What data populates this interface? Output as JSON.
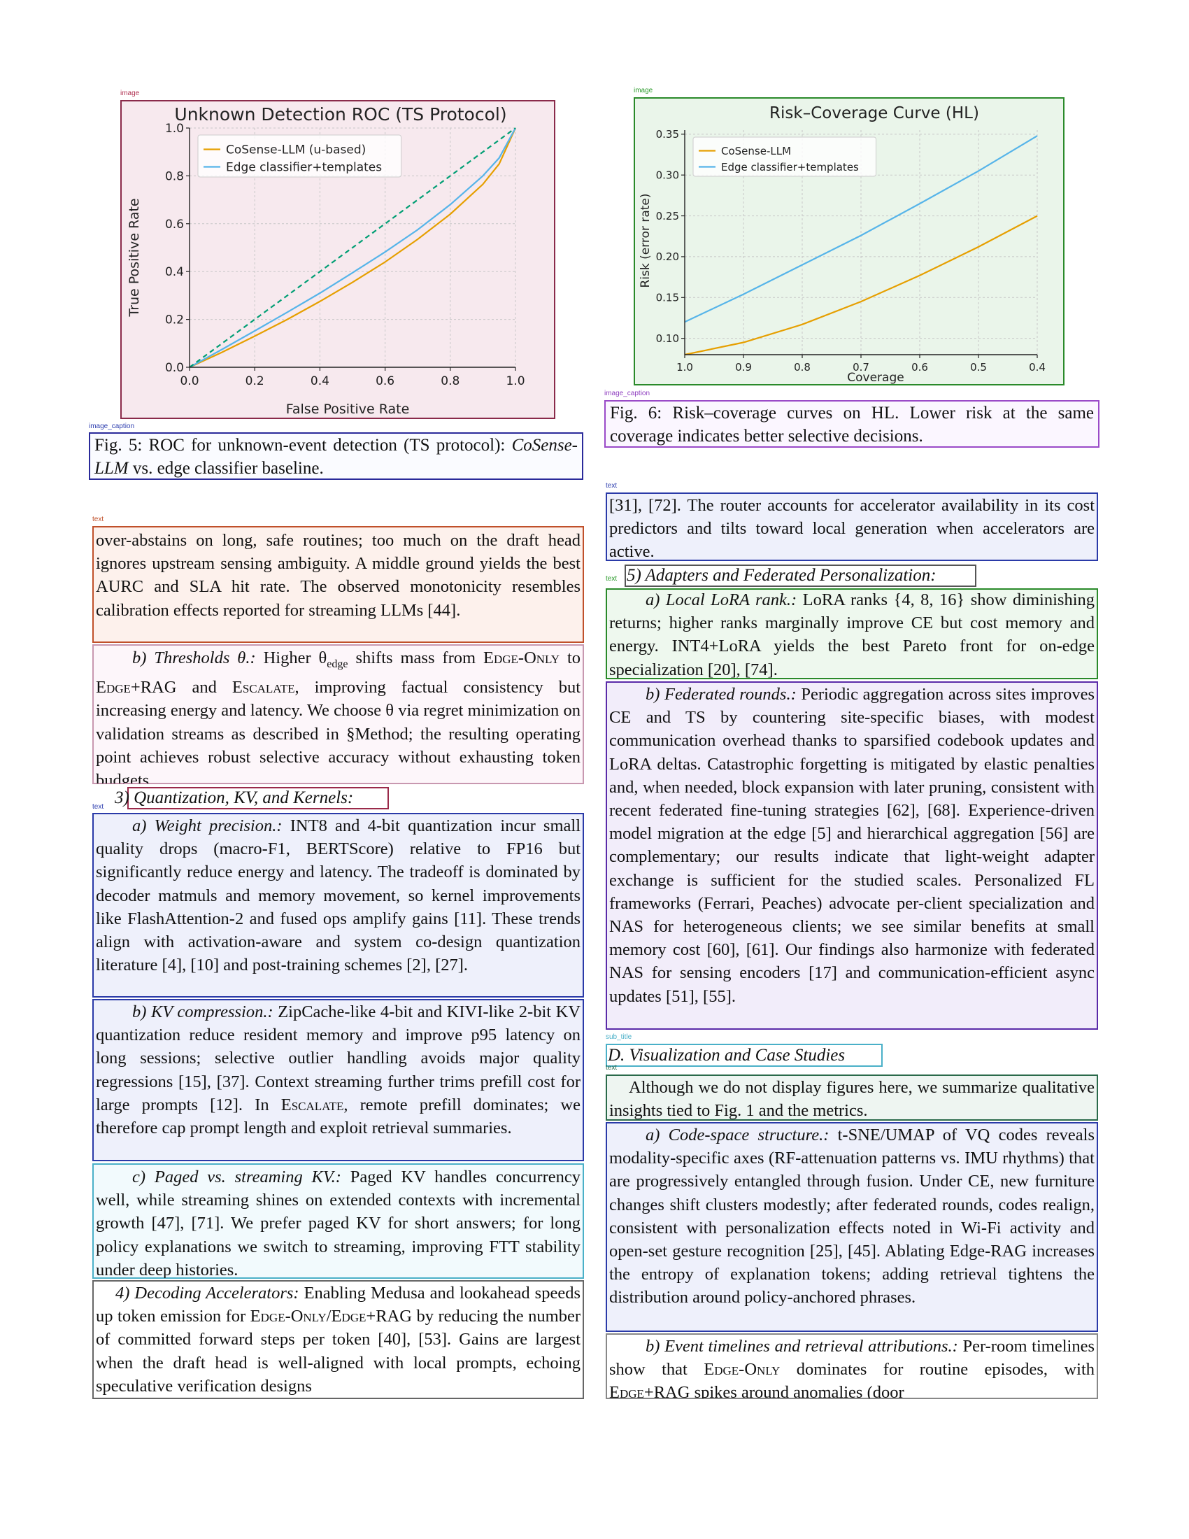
{
  "tags": {
    "image": "image",
    "image_caption": "image_caption",
    "text": "text",
    "sub_title": "sub_title"
  },
  "figures": {
    "fig5": {
      "caption_prefix": "Fig. 5: ROC for unknown-event detection (TS protocol):",
      "caption_model": "CoSense-LLM",
      "caption_rest": "vs. edge classifier baseline."
    },
    "fig6": {
      "caption": "Fig. 6: Risk–coverage curves on HL. Lower risk at the same coverage indicates better selective decisions."
    }
  },
  "left": {
    "p1": "over-abstains on long, safe routines; too much on the draft head ignores upstream sensing ambiguity. A middle ground yields the best AURC and SLA hit rate. The observed monotonicity resembles calibration effects reported for streaming LLMs [44].",
    "p2_label": "b) Thresholds θ.:",
    "p2_a": "Higher θ",
    "p2_sub": "edge",
    "p2_b": "shifts mass from",
    "p2_sc1": "Edge-Only",
    "p2_c": "to",
    "p2_sc2": "Edge+RAG",
    "p2_d": "and",
    "p2_sc3": "Escalate",
    "p2_e": ", improving factual consistency but increasing energy and latency. We choose θ via regret minimization on validation streams as described in §Method; the resulting operating point achieves robust selective accuracy without exhausting token budgets.",
    "h3": "3)  Quantization, KV, and Kernels:",
    "p3_label": "a) Weight precision.:",
    "p3": "INT8 and 4-bit quantization incur small quality drops (macro-F1, BERTScore) relative to FP16 but significantly reduce energy and latency. The tradeoff is dominated by decoder matmuls and memory movement, so kernel improvements like FlashAttention-2 and fused ops amplify gains [11]. These trends align with activation-aware and system co-design quantization literature [4], [10] and post-training schemes [2], [27].",
    "p4_label": "b) KV compression.:",
    "p4_a": "ZipCache-like 4-bit and KIVI-like 2-bit KV quantization reduce resident memory and improve p95 latency on long sessions; selective outlier handling avoids major quality regressions [15], [37]. Context streaming further trims prefill cost for large prompts [12]. In",
    "p4_sc": "Escalate",
    "p4_b": ", remote prefill dominates; we therefore cap prompt length and exploit retrieval summaries.",
    "p5_label": "c) Paged vs. streaming KV.:",
    "p5": "Paged KV handles concurrency well, while streaming shines on extended contexts with incremental growth [47], [71]. We prefer paged KV for short answers; for long policy explanations we switch to streaming, improving FTT stability under deep histories.",
    "p6_label": "4) Decoding Accelerators:",
    "p6_a": "Enabling Medusa and lookahead speeds up token emission for",
    "p6_sc1": "Edge-Only",
    "p6_slash": "/",
    "p6_sc2": "Edge+RAG",
    "p6_b": "by reducing the number of committed forward steps per token [40], [53]. Gains are largest when the draft head is well-aligned with local prompts, echoing speculative verification designs"
  },
  "right": {
    "p1": "[31], [72]. The router accounts for accelerator availability in its cost predictors and tilts toward local generation when accelerators are active.",
    "h5": "5)  Adapters and Federated Personalization:",
    "p2_label": "a) Local LoRA rank.:",
    "p2": "LoRA ranks {4, 8, 16} show diminishing returns; higher ranks marginally improve CE but cost memory and energy. INT4+LoRA yields the best Pareto front for on-edge specialization [20], [74].",
    "p3_label": "b) Federated rounds.:",
    "p3": "Periodic aggregation across sites improves CE and TS by countering site-specific biases, with modest communication overhead thanks to sparsified codebook updates and LoRA deltas. Catastrophic forgetting is mitigated by elastic penalties and, when needed, block expansion with later pruning, consistent with recent federated fine-tuning strategies [62], [68]. Experience-driven model migration at the edge [5] and hierarchical aggregation [56] are complementary; our results indicate that light-weight adapter exchange is sufficient for the studied scales. Personalized FL frameworks (Ferrari, Peaches) advocate per-client specialization and NAS for heterogeneous clients; we see similar benefits at small memory cost [60], [61]. Our findings also harmonize with federated NAS for sensing encoders [17] and communication-efficient async updates [51], [55].",
    "subtitle": "D.  Visualization and Case Studies",
    "p4": "Although we do not display figures here, we summarize qualitative insights tied to Fig. 1 and the metrics.",
    "p5_label": "a) Code-space structure.:",
    "p5": "t-SNE/UMAP of VQ codes reveals modality-specific axes (RF-attenuation patterns vs. IMU rhythms) that are progressively entangled through fusion. Under CE, new furniture changes shift clusters modestly; after federated rounds, codes realign, consistent with personalization effects noted in Wi-Fi activity and open-set gesture recognition [25], [45]. Ablating Edge-RAG increases the entropy of explanation tokens; adding retrieval tightens the distribution around policy-anchored phrases.",
    "p6_label": "b) Event timelines and retrieval attributions.:",
    "p6_a": "Per-room timelines show that",
    "p6_sc1": "Edge-Only",
    "p6_b": "dominates for routine episodes, with",
    "p6_sc2": "Edge+RAG",
    "p6_c": "spikes around anomalies (door"
  },
  "chart_data": [
    {
      "type": "line",
      "title": "Unknown Detection ROC (TS Protocol)",
      "xlabel": "False Positive Rate",
      "ylabel": "True Positive Rate",
      "xlim": [
        0,
        1
      ],
      "ylim": [
        0,
        1
      ],
      "xticks": [
        "0.0",
        "0.2",
        "0.4",
        "0.6",
        "0.8",
        "1.0"
      ],
      "yticks": [
        "0.0",
        "0.2",
        "0.4",
        "0.6",
        "0.8",
        "1.0"
      ],
      "grid": true,
      "legend": "top-left",
      "series": [
        {
          "name": "CoSense-LLM (u-based)",
          "color": "#e69f00",
          "x": [
            0,
            0.1,
            0.2,
            0.3,
            0.4,
            0.5,
            0.6,
            0.7,
            0.8,
            0.9,
            0.95,
            1.0
          ],
          "y": [
            0,
            0.063,
            0.13,
            0.2,
            0.275,
            0.355,
            0.44,
            0.535,
            0.64,
            0.765,
            0.85,
            1.0
          ]
        },
        {
          "name": "Edge classifier+templates",
          "color": "#56b4e9",
          "x": [
            0,
            0.1,
            0.2,
            0.3,
            0.4,
            0.5,
            0.6,
            0.7,
            0.8,
            0.9,
            0.95,
            1.0
          ],
          "y": [
            0,
            0.075,
            0.152,
            0.23,
            0.31,
            0.395,
            0.482,
            0.575,
            0.68,
            0.8,
            0.875,
            1.0
          ]
        },
        {
          "name": "",
          "color": "#009e73",
          "dashed": true,
          "x": [
            0,
            1
          ],
          "y": [
            0,
            1
          ]
        }
      ]
    },
    {
      "type": "line",
      "title": "Risk–Coverage Curve (HL)",
      "xlabel": "Coverage",
      "ylabel": "Risk (error rate)",
      "xlim": [
        1.0,
        0.4
      ],
      "ylim": [
        0.08,
        0.355
      ],
      "xticks": [
        "1.0",
        "0.9",
        "0.8",
        "0.7",
        "0.6",
        "0.5",
        "0.4"
      ],
      "yticks": [
        "0.10",
        "0.15",
        "0.20",
        "0.25",
        "0.30",
        "0.35"
      ],
      "grid": true,
      "legend": "top-left",
      "series": [
        {
          "name": "CoSense-LLM",
          "color": "#e69f00",
          "x": [
            1.0,
            0.9,
            0.8,
            0.7,
            0.6,
            0.5,
            0.4
          ],
          "y": [
            0.08,
            0.095,
            0.117,
            0.145,
            0.177,
            0.212,
            0.25
          ]
        },
        {
          "name": "Edge classifier+templates",
          "color": "#56b4e9",
          "x": [
            1.0,
            0.9,
            0.8,
            0.7,
            0.6,
            0.5,
            0.4
          ],
          "y": [
            0.12,
            0.154,
            0.19,
            0.226,
            0.265,
            0.305,
            0.348
          ]
        }
      ]
    }
  ]
}
